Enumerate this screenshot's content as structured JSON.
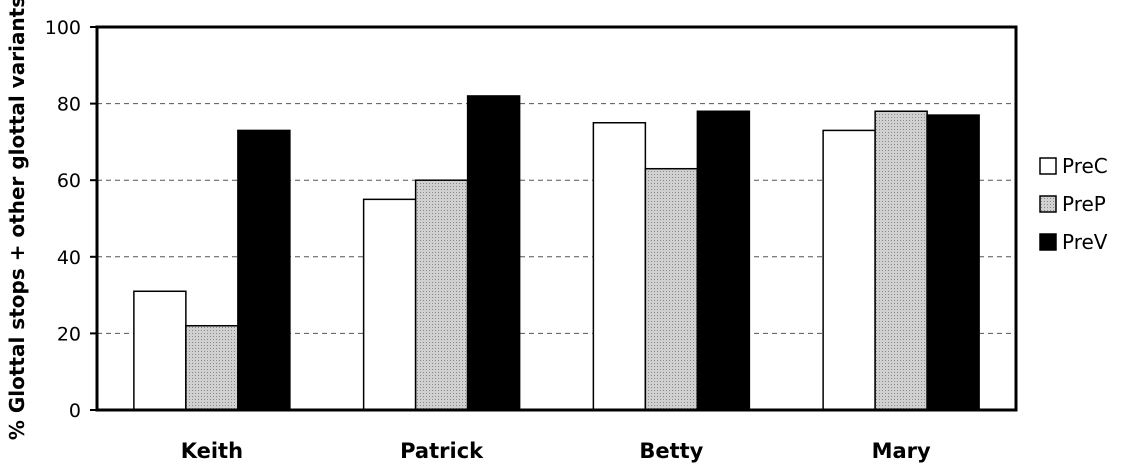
{
  "chart_data": {
    "type": "bar",
    "categories": [
      "Keith",
      "Patrick",
      "Betty",
      "Mary"
    ],
    "series": [
      {
        "name": "PreC",
        "values": [
          31,
          55,
          75,
          73
        ],
        "color": "#ffffff"
      },
      {
        "name": "PreP",
        "values": [
          22,
          60,
          63,
          78
        ],
        "color": "#bdbdbd"
      },
      {
        "name": "PreV",
        "values": [
          73,
          82,
          78,
          77
        ],
        "color": "#000000"
      }
    ],
    "ylabel": "% Glottal stops + other glottal variants",
    "xlabel": "",
    "title": "",
    "ylim": [
      0,
      100
    ],
    "yticks": [
      0,
      20,
      40,
      60,
      80,
      100
    ],
    "gridlines": [
      20,
      40,
      60,
      80
    ],
    "grid": true,
    "legend_position": "right"
  }
}
